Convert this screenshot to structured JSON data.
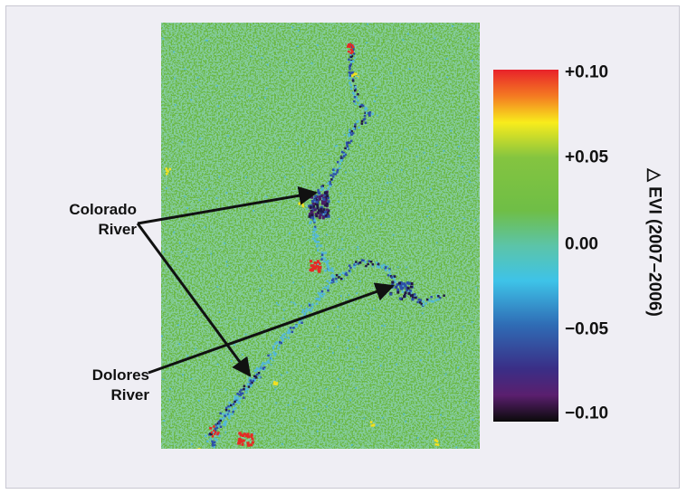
{
  "figure": {
    "colorbar": {
      "title": "△ EVI (2007–2006)",
      "ticks": [
        "+0.10",
        "+0.05",
        "0.00",
        "−0.05",
        "−0.10"
      ],
      "range": [
        -0.1,
        0.1
      ],
      "stops": [
        {
          "value": 0.1,
          "color": "#e8222a"
        },
        {
          "value": 0.085,
          "color": "#f47a22"
        },
        {
          "value": 0.07,
          "color": "#f8ec1c"
        },
        {
          "value": 0.05,
          "color": "#84c440"
        },
        {
          "value": 0.02,
          "color": "#6fbe46"
        },
        {
          "value": 0.0,
          "color": "#5cc4a8"
        },
        {
          "value": -0.02,
          "color": "#3ec3e8"
        },
        {
          "value": -0.045,
          "color": "#2f6cb5"
        },
        {
          "value": -0.07,
          "color": "#3a2e86"
        },
        {
          "value": -0.085,
          "color": "#5a1f6e"
        },
        {
          "value": -0.1,
          "color": "#0a0a0a"
        }
      ]
    },
    "labels": {
      "colorado_line1": "Colorado",
      "colorado_line2": "River",
      "dolores_line1": "Dolores",
      "dolores_line2": "River"
    },
    "colors": {
      "background_green": "#6ab842",
      "decrease_cyan": "#54b8d8",
      "decrease_blue": "#2d4fa8",
      "decrease_dark": "#221845",
      "increase_red": "#e52a25",
      "increase_yellow": "#f3e11e"
    }
  }
}
